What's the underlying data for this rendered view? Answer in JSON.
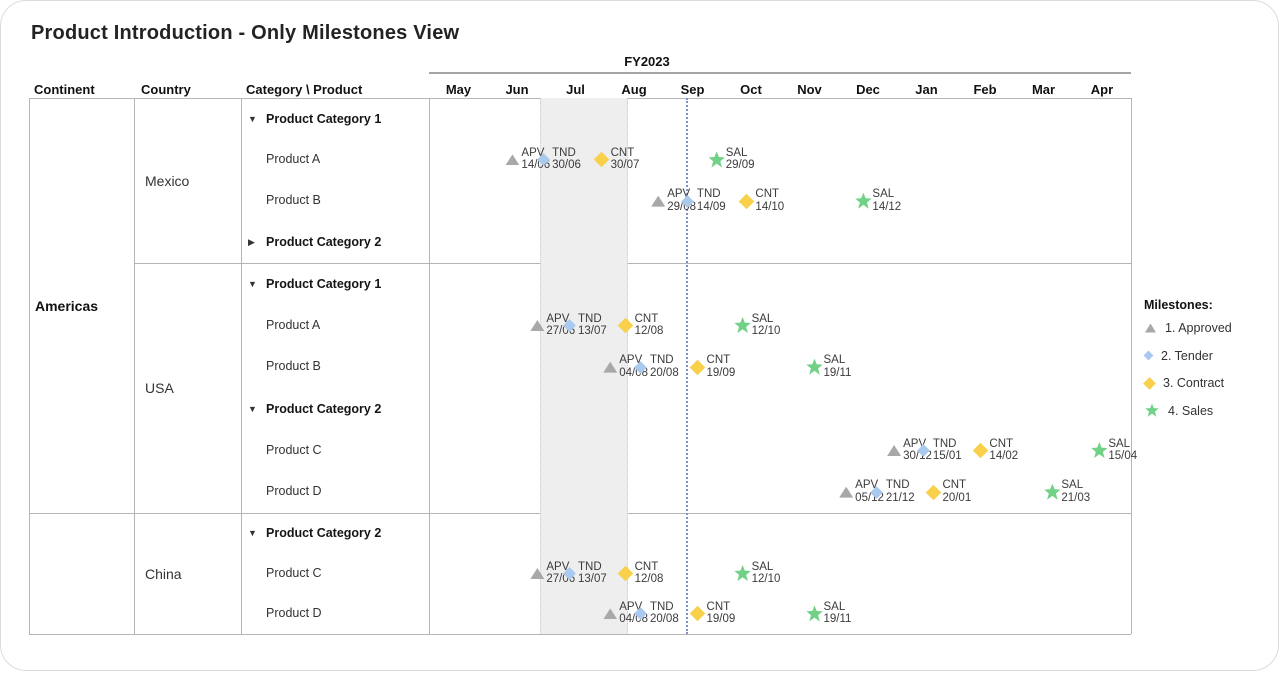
{
  "title": "Product Introduction - Only Milestones View",
  "chart_data": {
    "type": "gantt-milestones",
    "fiscal_year": "FY2023",
    "months": [
      "May",
      "Jun",
      "Jul",
      "Aug",
      "Sep",
      "Oct",
      "Nov",
      "Dec",
      "Jan",
      "Feb",
      "Mar",
      "Apr"
    ],
    "column_headers": {
      "continent": "Continent",
      "country": "Country",
      "category_product": "Category \\ Product"
    },
    "milestone_types": {
      "APV": {
        "shape": "triangle",
        "color": "#a8a8a8",
        "size": 14
      },
      "TND": {
        "shape": "diamond",
        "color": "#aac9ee",
        "size": 9
      },
      "CNT": {
        "shape": "diamond",
        "color": "#f8d04a",
        "size": 11
      },
      "SAL": {
        "shape": "star",
        "color": "#71d287",
        "size": 17
      }
    },
    "legend": {
      "title": "Milestones:",
      "items": [
        {
          "code": "APV",
          "label": "1. Approved"
        },
        {
          "code": "TND",
          "label": "2. Tender"
        },
        {
          "code": "CNT",
          "label": "3. Contract"
        },
        {
          "code": "SAL",
          "label": "4. Sales"
        }
      ]
    },
    "timeline_markers": {
      "highlight_band": {
        "start_frac": 0.158,
        "end_frac": 0.281
      },
      "reference_line_frac": 0.366
    },
    "groups": [
      {
        "continent": "Americas",
        "countries": [
          {
            "name": "Mexico",
            "rows": [
              {
                "kind": "category",
                "label": "Product Category 1",
                "expanded": true
              },
              {
                "kind": "product",
                "label": "Product A",
                "milestones": [
                  {
                    "code": "APV",
                    "date": "14/06"
                  },
                  {
                    "code": "TND",
                    "date": "30/06"
                  },
                  {
                    "code": "CNT",
                    "date": "30/07"
                  },
                  {
                    "code": "SAL",
                    "date": "29/09"
                  }
                ]
              },
              {
                "kind": "product",
                "label": "Product B",
                "milestones": [
                  {
                    "code": "APV",
                    "date": "29/08"
                  },
                  {
                    "code": "TND",
                    "date": "14/09"
                  },
                  {
                    "code": "CNT",
                    "date": "14/10"
                  },
                  {
                    "code": "SAL",
                    "date": "14/12"
                  }
                ]
              },
              {
                "kind": "category",
                "label": "Product Category 2",
                "expanded": false
              }
            ]
          },
          {
            "name": "USA",
            "rows": [
              {
                "kind": "category",
                "label": "Product Category 1",
                "expanded": true
              },
              {
                "kind": "product",
                "label": "Product A",
                "milestones": [
                  {
                    "code": "APV",
                    "date": "27/06"
                  },
                  {
                    "code": "TND",
                    "date": "13/07"
                  },
                  {
                    "code": "CNT",
                    "date": "12/08"
                  },
                  {
                    "code": "SAL",
                    "date": "12/10"
                  }
                ]
              },
              {
                "kind": "product",
                "label": "Product B",
                "milestones": [
                  {
                    "code": "APV",
                    "date": "04/08"
                  },
                  {
                    "code": "TND",
                    "date": "20/08"
                  },
                  {
                    "code": "CNT",
                    "date": "19/09"
                  },
                  {
                    "code": "SAL",
                    "date": "19/11"
                  }
                ]
              },
              {
                "kind": "category",
                "label": "Product Category 2",
                "expanded": true
              },
              {
                "kind": "product",
                "label": "Product C",
                "milestones": [
                  {
                    "code": "APV",
                    "date": "30/12"
                  },
                  {
                    "code": "TND",
                    "date": "15/01"
                  },
                  {
                    "code": "CNT",
                    "date": "14/02"
                  },
                  {
                    "code": "SAL",
                    "date": "15/04"
                  }
                ]
              },
              {
                "kind": "product",
                "label": "Product D",
                "milestones": [
                  {
                    "code": "APV",
                    "date": "05/12"
                  },
                  {
                    "code": "TND",
                    "date": "21/12"
                  },
                  {
                    "code": "CNT",
                    "date": "20/01"
                  },
                  {
                    "code": "SAL",
                    "date": "21/03"
                  }
                ]
              }
            ]
          }
        ]
      },
      {
        "continent": "",
        "countries": [
          {
            "name": "China",
            "rows": [
              {
                "kind": "category",
                "label": "Product Category 2",
                "expanded": true
              },
              {
                "kind": "product",
                "label": "Product C",
                "milestones": [
                  {
                    "code": "APV",
                    "date": "27/06"
                  },
                  {
                    "code": "TND",
                    "date": "13/07"
                  },
                  {
                    "code": "CNT",
                    "date": "12/08"
                  },
                  {
                    "code": "SAL",
                    "date": "12/10"
                  }
                ]
              },
              {
                "kind": "product",
                "label": "Product D",
                "milestones": [
                  {
                    "code": "APV",
                    "date": "04/08"
                  },
                  {
                    "code": "TND",
                    "date": "20/08"
                  },
                  {
                    "code": "CNT",
                    "date": "19/09"
                  },
                  {
                    "code": "SAL",
                    "date": "19/11"
                  }
                ]
              }
            ]
          }
        ]
      }
    ]
  }
}
